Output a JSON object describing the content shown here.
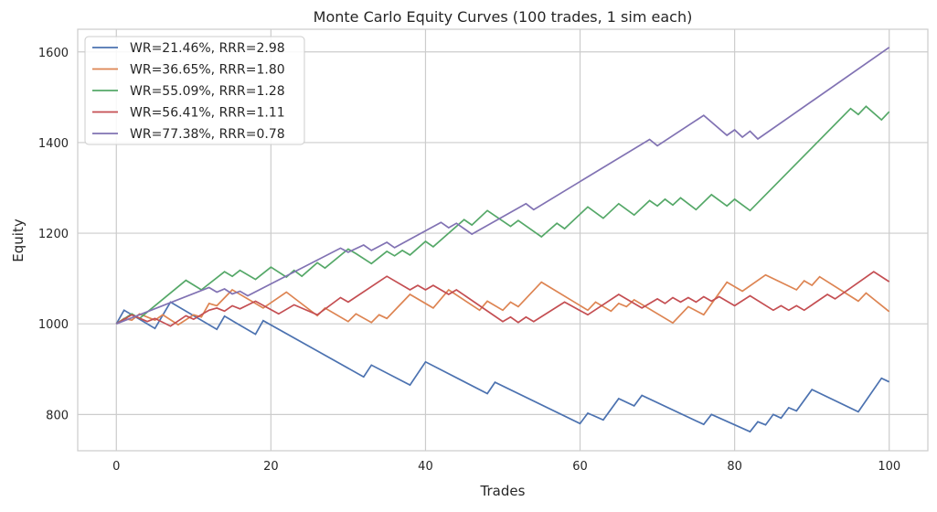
{
  "chart_data": {
    "type": "line",
    "title": "Monte Carlo Equity Curves (100 trades, 1 sim each)",
    "xlabel": "Trades",
    "ylabel": "Equity",
    "xlim": [
      -5,
      105
    ],
    "ylim": [
      720,
      1650
    ],
    "xticks": [
      0,
      20,
      40,
      60,
      80,
      100
    ],
    "yticks": [
      800,
      1000,
      1200,
      1400,
      1600
    ],
    "grid": true,
    "legend_position": "upper-left",
    "series": [
      {
        "name": "WR=21.46%, RRR=2.98",
        "color": "#4c72b0",
        "points": [
          [
            0,
            1000
          ],
          [
            1,
            1030
          ],
          [
            3,
            1010
          ],
          [
            5,
            990
          ],
          [
            7,
            1048
          ],
          [
            13,
            988
          ],
          [
            14,
            1017
          ],
          [
            18,
            977
          ],
          [
            19,
            1007
          ],
          [
            32,
            883
          ],
          [
            33,
            909
          ],
          [
            38,
            865
          ],
          [
            40,
            916
          ],
          [
            48,
            846
          ],
          [
            49,
            871
          ],
          [
            60,
            780
          ],
          [
            61,
            803
          ],
          [
            63,
            788
          ],
          [
            65,
            835
          ],
          [
            67,
            819
          ],
          [
            68,
            842
          ],
          [
            76,
            778
          ],
          [
            77,
            800
          ],
          [
            82,
            762
          ],
          [
            83,
            784
          ],
          [
            84,
            777
          ],
          [
            85,
            800
          ],
          [
            86,
            792
          ],
          [
            87,
            815
          ],
          [
            88,
            808
          ],
          [
            90,
            855
          ],
          [
            96,
            806
          ],
          [
            99,
            880
          ],
          [
            100,
            872
          ]
        ]
      },
      {
        "name": "WR=36.65%, RRR=1.80",
        "color": "#dd8452",
        "points": [
          [
            0,
            1000
          ],
          [
            1,
            1012
          ],
          [
            2,
            1008
          ],
          [
            3,
            1022
          ],
          [
            5,
            1008
          ],
          [
            6,
            1020
          ],
          [
            8,
            998
          ],
          [
            10,
            1020
          ],
          [
            11,
            1015
          ],
          [
            12,
            1045
          ],
          [
            13,
            1040
          ],
          [
            15,
            1075
          ],
          [
            19,
            1035
          ],
          [
            22,
            1070
          ],
          [
            26,
            1018
          ],
          [
            27,
            1035
          ],
          [
            30,
            1005
          ],
          [
            31,
            1022
          ],
          [
            33,
            1003
          ],
          [
            34,
            1020
          ],
          [
            35,
            1012
          ],
          [
            38,
            1065
          ],
          [
            41,
            1035
          ],
          [
            43,
            1075
          ],
          [
            47,
            1030
          ],
          [
            48,
            1050
          ],
          [
            50,
            1030
          ],
          [
            51,
            1048
          ],
          [
            52,
            1038
          ],
          [
            55,
            1092
          ],
          [
            61,
            1030
          ],
          [
            62,
            1048
          ],
          [
            64,
            1028
          ],
          [
            65,
            1045
          ],
          [
            66,
            1038
          ],
          [
            67,
            1053
          ],
          [
            72,
            1002
          ],
          [
            74,
            1038
          ],
          [
            76,
            1020
          ],
          [
            79,
            1092
          ],
          [
            81,
            1072
          ],
          [
            84,
            1108
          ],
          [
            88,
            1075
          ],
          [
            89,
            1095
          ],
          [
            90,
            1085
          ],
          [
            91,
            1104
          ],
          [
            96,
            1050
          ],
          [
            97,
            1068
          ],
          [
            100,
            1027
          ]
        ]
      },
      {
        "name": "WR=55.09%, RRR=1.28",
        "color": "#55a868",
        "points": [
          [
            0,
            1000
          ],
          [
            2,
            1022
          ],
          [
            3,
            1012
          ],
          [
            9,
            1096
          ],
          [
            11,
            1075
          ],
          [
            14,
            1115
          ],
          [
            15,
            1105
          ],
          [
            16,
            1118
          ],
          [
            18,
            1098
          ],
          [
            20,
            1125
          ],
          [
            22,
            1103
          ],
          [
            23,
            1118
          ],
          [
            24,
            1105
          ],
          [
            26,
            1135
          ],
          [
            27,
            1123
          ],
          [
            30,
            1165
          ],
          [
            31,
            1155
          ],
          [
            33,
            1133
          ],
          [
            35,
            1160
          ],
          [
            36,
            1150
          ],
          [
            37,
            1162
          ],
          [
            38,
            1152
          ],
          [
            40,
            1182
          ],
          [
            41,
            1170
          ],
          [
            45,
            1230
          ],
          [
            46,
            1218
          ],
          [
            48,
            1250
          ],
          [
            51,
            1215
          ],
          [
            52,
            1228
          ],
          [
            55,
            1192
          ],
          [
            57,
            1222
          ],
          [
            58,
            1210
          ],
          [
            61,
            1258
          ],
          [
            63,
            1233
          ],
          [
            65,
            1265
          ],
          [
            67,
            1240
          ],
          [
            69,
            1272
          ],
          [
            70,
            1260
          ],
          [
            71,
            1275
          ],
          [
            72,
            1262
          ],
          [
            73,
            1278
          ],
          [
            75,
            1252
          ],
          [
            77,
            1285
          ],
          [
            79,
            1260
          ],
          [
            80,
            1275
          ],
          [
            82,
            1250
          ],
          [
            95,
            1475
          ],
          [
            96,
            1462
          ],
          [
            97,
            1480
          ],
          [
            99,
            1450
          ],
          [
            100,
            1468
          ]
        ]
      },
      {
        "name": "WR=56.41%, RRR=1.11",
        "color": "#c44e52",
        "points": [
          [
            0,
            1000
          ],
          [
            2,
            1020
          ],
          [
            4,
            1005
          ],
          [
            5,
            1012
          ],
          [
            7,
            995
          ],
          [
            9,
            1018
          ],
          [
            10,
            1010
          ],
          [
            12,
            1030
          ],
          [
            13,
            1035
          ],
          [
            14,
            1028
          ],
          [
            15,
            1040
          ],
          [
            16,
            1033
          ],
          [
            18,
            1050
          ],
          [
            21,
            1022
          ],
          [
            23,
            1042
          ],
          [
            26,
            1020
          ],
          [
            29,
            1058
          ],
          [
            30,
            1048
          ],
          [
            35,
            1105
          ],
          [
            38,
            1075
          ],
          [
            39,
            1085
          ],
          [
            40,
            1075
          ],
          [
            41,
            1085
          ],
          [
            43,
            1065
          ],
          [
            44,
            1075
          ],
          [
            50,
            1005
          ],
          [
            51,
            1015
          ],
          [
            52,
            1003
          ],
          [
            53,
            1015
          ],
          [
            54,
            1005
          ],
          [
            58,
            1048
          ],
          [
            61,
            1020
          ],
          [
            65,
            1065
          ],
          [
            68,
            1035
          ],
          [
            70,
            1055
          ],
          [
            71,
            1045
          ],
          [
            72,
            1058
          ],
          [
            73,
            1048
          ],
          [
            74,
            1058
          ],
          [
            75,
            1048
          ],
          [
            76,
            1060
          ],
          [
            77,
            1050
          ],
          [
            78,
            1060
          ],
          [
            80,
            1040
          ],
          [
            82,
            1062
          ],
          [
            85,
            1030
          ],
          [
            86,
            1040
          ],
          [
            87,
            1030
          ],
          [
            88,
            1040
          ],
          [
            89,
            1030
          ],
          [
            92,
            1065
          ],
          [
            93,
            1055
          ],
          [
            98,
            1115
          ],
          [
            100,
            1093
          ]
        ]
      },
      {
        "name": "WR=77.38%, RRR=0.78",
        "color": "#8172b3",
        "points": [
          [
            0,
            1000
          ],
          [
            12,
            1080
          ],
          [
            13,
            1070
          ],
          [
            14,
            1077
          ],
          [
            15,
            1066
          ],
          [
            16,
            1072
          ],
          [
            17,
            1062
          ],
          [
            29,
            1167
          ],
          [
            30,
            1158
          ],
          [
            32,
            1174
          ],
          [
            33,
            1162
          ],
          [
            35,
            1180
          ],
          [
            36,
            1168
          ],
          [
            42,
            1224
          ],
          [
            43,
            1212
          ],
          [
            44,
            1222
          ],
          [
            46,
            1198
          ],
          [
            53,
            1265
          ],
          [
            54,
            1252
          ],
          [
            69,
            1407
          ],
          [
            70,
            1393
          ],
          [
            76,
            1460
          ],
          [
            79,
            1416
          ],
          [
            80,
            1428
          ],
          [
            81,
            1412
          ],
          [
            82,
            1425
          ],
          [
            83,
            1408
          ],
          [
            100,
            1610
          ]
        ]
      }
    ]
  }
}
